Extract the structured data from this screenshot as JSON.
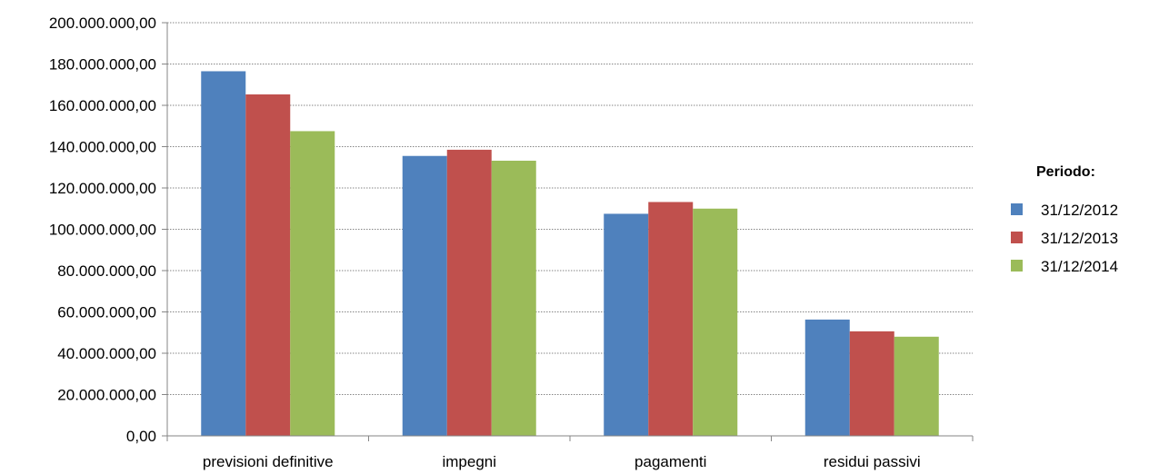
{
  "chart_data": {
    "type": "bar",
    "categories": [
      "previsioni definitive",
      "impegni",
      "pagamenti",
      "residui passivi"
    ],
    "series": [
      {
        "name": "31/12/2012",
        "color": "#4F81BD",
        "values": [
          176500000,
          135500000,
          107500000,
          56300000
        ]
      },
      {
        "name": "31/12/2013",
        "color": "#C0504D",
        "values": [
          165300000,
          138500000,
          113200000,
          50600000
        ]
      },
      {
        "name": "31/12/2014",
        "color": "#9BBB59",
        "values": [
          147500000,
          133200000,
          110000000,
          48000000
        ]
      }
    ],
    "y_ticks": [
      "0,00",
      "20.000.000,00",
      "40.000.000,00",
      "60.000.000,00",
      "80.000.000,00",
      "100.000.000,00",
      "120.000.000,00",
      "140.000.000,00",
      "160.000.000,00",
      "180.000.000,00",
      "200.000.000,00"
    ],
    "ylim": [
      0,
      200000000
    ],
    "grid": true,
    "legend": {
      "title": "Periodo:",
      "position": "right"
    }
  }
}
